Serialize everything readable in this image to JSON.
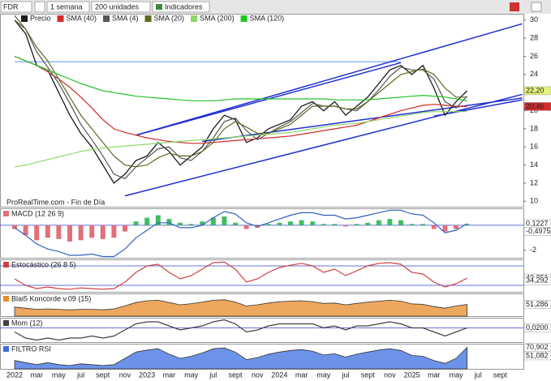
{
  "toolbar": {
    "symbol": "FDR",
    "period": "1 semana",
    "units": "200 unidades",
    "indicators": "Indicadores"
  },
  "chart_data": [
    {
      "type": "line",
      "annotation": "ProRealTime.com - Fin de Día",
      "categories": [
        "2022",
        null,
        "mar",
        null,
        "may",
        null,
        "jul",
        null,
        "sept",
        null,
        "nov",
        null,
        "2023",
        null,
        "mar",
        null,
        "may",
        null,
        "jul",
        null,
        "sept",
        null,
        "nov",
        null,
        "2024",
        null,
        "mar",
        null,
        "may",
        null,
        "jul",
        null,
        "sept",
        null,
        "nov",
        null,
        "2025",
        null,
        "mar",
        null,
        "may",
        null,
        "jul",
        null,
        "sept",
        null
      ],
      "ylim": [
        9.4,
        30.7
      ],
      "yticks": [
        10,
        12,
        14,
        16,
        18,
        20,
        22,
        24,
        26,
        28,
        30
      ],
      "series": [
        {
          "name": "Precio",
          "color": "#1a1a1a",
          "values": [
            30,
            28.5,
            25,
            24.5,
            22,
            19.5,
            17.5,
            16,
            14,
            12,
            13,
            14.5,
            15,
            16.5,
            15.5,
            14,
            15,
            16,
            18,
            19.5,
            19,
            16.5,
            17,
            18,
            18.5,
            19,
            20.5,
            21,
            20,
            21,
            19.5,
            20.5,
            21.5,
            23,
            24.5,
            25,
            24,
            25,
            22.5,
            19.5,
            21,
            22.2,
            null,
            null,
            null,
            null
          ]
        },
        {
          "name": "SMA (40)",
          "color": "#d42a2a",
          "values": [
            26,
            25.5,
            25,
            24.3,
            23.5,
            22.6,
            21.5,
            20.3,
            19,
            18,
            17.6,
            17.3,
            17,
            16.8,
            16.6,
            16.5,
            16.4,
            16.4,
            16.5,
            16.6,
            16.7,
            16.8,
            16.9,
            17,
            17.1,
            17.2,
            17.4,
            17.6,
            17.8,
            18,
            18.2,
            18.4,
            18.8,
            19.2,
            19.6,
            20,
            20.3,
            20.6,
            20.7,
            20.6,
            20.5,
            20.46,
            null,
            null,
            null,
            null
          ]
        },
        {
          "name": "SMA (4)",
          "color": "#555555",
          "values": [
            30.5,
            29,
            26.5,
            24.8,
            23,
            20.8,
            18.5,
            16.8,
            15,
            13,
            12.5,
            13.8,
            14.8,
            15.8,
            16,
            14.8,
            14.5,
            15.5,
            17,
            18.8,
            19.2,
            17.8,
            16.8,
            17.5,
            18.2,
            18.8,
            19.8,
            20.8,
            20.5,
            20.5,
            20.2,
            20,
            21,
            22.3,
            23.8,
            24.8,
            24.5,
            24.5,
            23.5,
            21,
            20.3,
            21.6,
            null,
            null,
            null,
            null
          ]
        },
        {
          "name": "SMA (20)",
          "color": "#5b6b1e",
          "values": [
            30,
            29,
            27,
            25.5,
            23.5,
            21.5,
            19.5,
            18,
            16.5,
            15,
            14,
            13.8,
            14,
            14.8,
            15.3,
            15,
            15,
            15.5,
            16.5,
            18,
            18.8,
            18.2,
            17.5,
            17.5,
            18,
            18.5,
            19.5,
            20.5,
            20.5,
            20.5,
            20.2,
            20.2,
            21,
            22,
            23,
            24,
            24.3,
            24.6,
            24,
            22.5,
            21.5,
            21.5,
            null,
            null,
            null,
            null
          ]
        },
        {
          "name": "SMA (200)",
          "color": "#8fd86a",
          "values": [
            13.8,
            14,
            14.3,
            14.6,
            14.9,
            15.2,
            15.5,
            15.7,
            15.9,
            16,
            16.1,
            16.2,
            16.3,
            16.4,
            16.5,
            16.6,
            16.7,
            16.8,
            16.9,
            17,
            17.1,
            17.2,
            17.3,
            17.4,
            17.5,
            17.6,
            17.8,
            18,
            18.2,
            18.4,
            18.5,
            18.6,
            18.8,
            19,
            19.2,
            19.4,
            19.6,
            19.8,
            19.9,
            19.9,
            19.9,
            19.9,
            null,
            null,
            null,
            null
          ]
        },
        {
          "name": "SMA (120)",
          "color": "#22c322",
          "values": [
            26,
            25.5,
            25,
            24.5,
            24,
            23.5,
            23,
            22.6,
            22.2,
            22,
            21.8,
            21.6,
            21.5,
            21.4,
            21.3,
            21.2,
            21.1,
            21.1,
            21.1,
            21.2,
            21.3,
            21.3,
            21.3,
            21.3,
            21.3,
            21.3,
            21.3,
            21.3,
            21.3,
            21.2,
            21.2,
            21.2,
            21.2,
            21.3,
            21.4,
            21.5,
            21.6,
            21.7,
            21.6,
            21.5,
            21.3,
            21.1,
            null,
            null,
            null,
            null
          ]
        }
      ],
      "trendlines": [
        {
          "x": [
            0,
            35
          ],
          "y": [
            25.4,
            25.4
          ],
          "color": "#8fb8ff"
        },
        {
          "x": [
            11,
            46
          ],
          "y": [
            17.3,
            29.6
          ],
          "color": "#1f2fd0"
        },
        {
          "x": [
            11,
            35
          ],
          "y": [
            17.3,
            25.3
          ],
          "color": "#1f2fd0"
        },
        {
          "x": [
            10,
            46
          ],
          "y": [
            10.6,
            21.8
          ],
          "color": "#1f2fd0"
        },
        {
          "x": [
            17,
            46
          ],
          "y": [
            16.6,
            21.4
          ],
          "color": "#1f2fd0"
        },
        {
          "x": [
            38,
            46
          ],
          "y": [
            19.4,
            21.2
          ],
          "color": "#1f2fd0"
        }
      ],
      "last_labels": [
        {
          "value": 22.2,
          "label": "22,20",
          "color": "#e4f27a"
        },
        {
          "value": 20.46,
          "label": "20,46",
          "color": "#d42a2a"
        }
      ]
    },
    {
      "type": "bar",
      "title": "MACD (12 26 9)",
      "ylim": [
        -2.6,
        1.35
      ],
      "yticks": [
        -2
      ],
      "hlines": [
        0
      ],
      "color": "#e0707a",
      "values": [
        -0.3,
        -0.8,
        -1.2,
        -1.0,
        -1.1,
        -1.3,
        -1.2,
        -1.0,
        -1.1,
        -1.0,
        -0.5,
        0.3,
        0.6,
        0.8,
        0.5,
        0.2,
        0.1,
        0.3,
        0.6,
        0.7,
        0.2,
        -0.3,
        -0.2,
        0.1,
        0.2,
        0.3,
        0.4,
        0.3,
        0.1,
        0.1,
        -0.1,
        0.1,
        0.2,
        0.4,
        0.5,
        0.4,
        0.1,
        0.1,
        -0.3,
        -0.5,
        -0.3,
        0.1,
        null,
        null,
        null,
        null
      ],
      "line": {
        "color": "#3060c0",
        "values": [
          -0.2,
          -0.8,
          -1.5,
          -1.9,
          -2.1,
          -2.4,
          -2.4,
          -2.3,
          -2.5,
          -2.5,
          -1.9,
          -1,
          -0.4,
          0.2,
          0.2,
          -0.2,
          -0.2,
          0,
          0.6,
          1.1,
          0.9,
          0.2,
          -0.1,
          0.2,
          0.5,
          0.8,
          1,
          1,
          0.8,
          0.8,
          0.5,
          0.6,
          0.8,
          1,
          1.2,
          1.2,
          0.9,
          0.8,
          0.2,
          -0.6,
          -0.4,
          0.12,
          null,
          null,
          null,
          null
        ]
      },
      "last_labels": [
        {
          "value": 0.1227,
          "label": "0,1227",
          "color": "#ffffff"
        },
        {
          "value": -0.4975,
          "label": "-0,4975",
          "color": "#ffffff"
        }
      ]
    },
    {
      "type": "line",
      "title": "Estocástico (26 8 5)",
      "ylim": [
        0,
        100
      ],
      "yticks": [],
      "hlines": [
        80,
        20
      ],
      "color": "#d04040",
      "values": [
        40,
        20,
        10,
        15,
        10,
        8,
        12,
        10,
        8,
        10,
        30,
        60,
        80,
        85,
        60,
        40,
        50,
        70,
        90,
        92,
        70,
        30,
        40,
        60,
        75,
        82,
        88,
        80,
        60,
        70,
        50,
        65,
        80,
        88,
        90,
        85,
        60,
        55,
        30,
        15,
        25,
        42,
        null,
        null,
        null,
        null
      ],
      "last_labels": [
        {
          "value": 42.251,
          "label": "42,251",
          "color": "#ffffff"
        },
        {
          "value": 34.292,
          "label": "34,292",
          "color": "#ffffff"
        }
      ]
    },
    {
      "type": "area",
      "title": "Blai5 Koncorde v.09 (15)",
      "ylim": [
        0,
        100
      ],
      "yticks": [],
      "hlines": [],
      "color": "#e8892a",
      "values": [
        40,
        35,
        30,
        32,
        30,
        28,
        30,
        30,
        28,
        32,
        45,
        60,
        68,
        70,
        60,
        50,
        55,
        62,
        70,
        72,
        62,
        45,
        50,
        58,
        64,
        66,
        68,
        64,
        56,
        58,
        50,
        56,
        62,
        66,
        70,
        66,
        54,
        52,
        42,
        35,
        45,
        51.286,
        null,
        null,
        null,
        null
      ],
      "last_labels": [
        {
          "value": 51.286,
          "label": "51,286",
          "color": "#ffffff"
        }
      ]
    },
    {
      "type": "line",
      "title": "Mom (12)",
      "ylim": [
        -7,
        5
      ],
      "yticks": [],
      "hlines": [
        0
      ],
      "color": "#404040",
      "values": [
        -2,
        -5,
        -6,
        -5,
        -6,
        -5,
        -5,
        -4,
        -5,
        -4,
        -1,
        2,
        3,
        3,
        1,
        -1,
        0,
        1,
        3,
        4,
        2,
        -2,
        -1,
        1,
        2,
        2,
        2,
        2,
        0,
        1,
        -1,
        1,
        1,
        2,
        3,
        2,
        0,
        0,
        -2,
        -4,
        -2,
        0.02,
        null,
        null,
        null,
        null
      ],
      "last_labels": [
        {
          "value": 0.02,
          "label": "0,0200",
          "color": "#ffffff"
        }
      ]
    },
    {
      "type": "area",
      "title": "FILTRO RSI",
      "ylim": [
        20,
        80
      ],
      "yticks": [],
      "hlines": [],
      "color": "#3b6fe0",
      "values": [
        40,
        35,
        30,
        35,
        30,
        28,
        32,
        30,
        28,
        30,
        45,
        60,
        65,
        68,
        55,
        45,
        50,
        58,
        68,
        70,
        60,
        42,
        47,
        55,
        60,
        64,
        66,
        62,
        53,
        56,
        48,
        55,
        60,
        65,
        68,
        64,
        52,
        50,
        40,
        33,
        45,
        71,
        null,
        null,
        null,
        null
      ],
      "last_labels": [
        {
          "value": 70.902,
          "label": "70,902",
          "color": "#ffffff"
        },
        {
          "value": 51.082,
          "label": "51,082",
          "color": "#ffffff"
        }
      ]
    }
  ]
}
